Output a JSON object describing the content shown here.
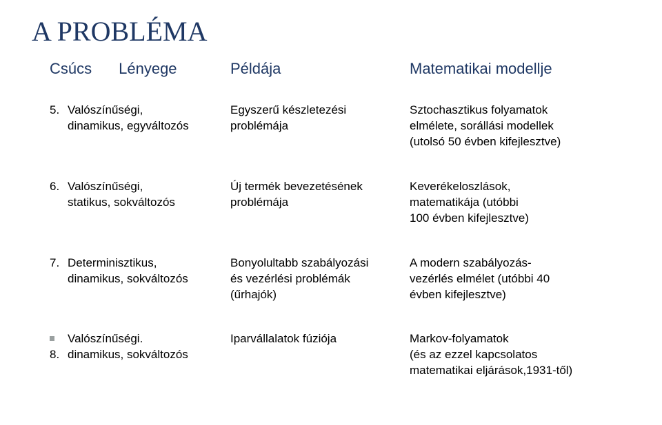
{
  "title": "A PROBLÉMA",
  "headers": {
    "csucs": "Csúcs",
    "lenyege": "Lényege",
    "peldaja": "Példája",
    "modell": "Matematikai modellje"
  },
  "rows": [
    {
      "num": "5.",
      "c1a": "Valószínűségi,",
      "c1b": "dinamikus, egyváltozós",
      "c2a": "Egyszerű készletezési",
      "c2b": "problémája",
      "c3a": "Sztochasztikus folyamatok",
      "c3b": "elmélete, sorállási modellek",
      "c3c": "(utolsó 50 évben kifejlesztve)"
    },
    {
      "num": "6.",
      "c1a": "Valószínűségi,",
      "c1b": "statikus, sokváltozós",
      "c2a": "Új termék bevezetésének",
      "c2b": "problémája",
      "c3a": "Keverékeloszlások,",
      "c3b": "matematikája (utóbbi",
      "c3c": "100 évben kifejlesztve)"
    },
    {
      "num": "7.",
      "c1a": "Determinisztikus,",
      "c1b": "dinamikus, sokváltozós",
      "c2a": "Bonyolultabb szabályozási",
      "c2b": "és vezérlési problémák",
      "c2c": "(űrhajók)",
      "c3a": "A modern szabályozás-",
      "c3b": "vezérlés elmélet (utóbbi 40",
      "c3c": "évben kifejlesztve)"
    },
    {
      "num": "8.",
      "c1a": "Valószínűségi.",
      "c1b": "dinamikus, sokváltozós",
      "c2a": "Iparvállalatok fúziója",
      "c3a": "Markov-folyamatok",
      "c3b": "(és az ezzel kapcsolatos",
      "c3c": "matematikai eljárások,1931-től)"
    }
  ]
}
